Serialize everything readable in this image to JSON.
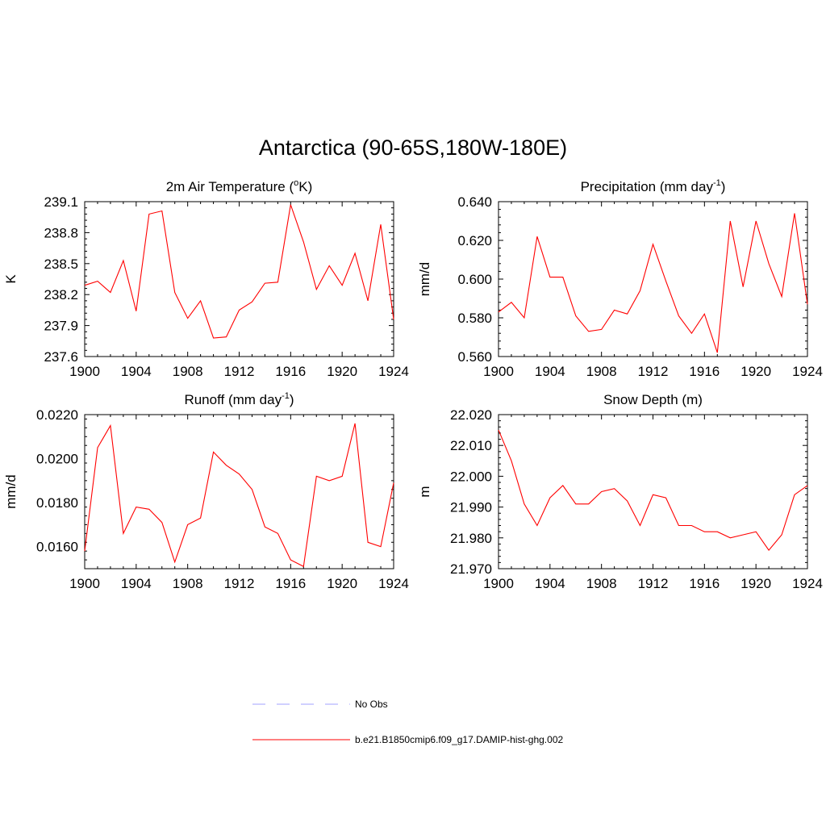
{
  "title": "Antarctica (90-65S,180W-180E)",
  "colors": {
    "series": "#ff0000",
    "obs": "#a0a0ff",
    "axis": "#000000"
  },
  "legend": [
    {
      "label": "No Obs",
      "style": "dashed",
      "color": "#a0a0ff"
    },
    {
      "label": "b.e21.B1850cmip6.f09_g17.DAMIP-hist-ghg.002",
      "style": "solid",
      "color": "#ff0000"
    }
  ],
  "chart_data": [
    {
      "type": "line",
      "title": "2m Air Temperature (",
      "title_sup": "o",
      "title_after": "K)",
      "ylabel": "K",
      "xlim": [
        1900,
        1924
      ],
      "ylim": [
        237.6,
        239.1
      ],
      "xticks": [
        "1900",
        "1904",
        "1908",
        "1912",
        "1916",
        "1920",
        "1924"
      ],
      "yticks": [
        "237.6",
        "237.9",
        "238.2",
        "238.5",
        "238.8",
        "239.1"
      ],
      "series": [
        {
          "x": [
            1900,
            1901,
            1902,
            1903,
            1904,
            1905,
            1906,
            1907,
            1908,
            1909,
            1910,
            1911,
            1912,
            1913,
            1914,
            1915,
            1916,
            1917,
            1918,
            1919,
            1920,
            1921,
            1922,
            1923,
            1924
          ],
          "y": [
            238.29,
            238.33,
            238.22,
            238.53,
            238.04,
            238.98,
            239.01,
            238.22,
            237.97,
            238.14,
            237.78,
            237.79,
            238.05,
            238.13,
            238.31,
            238.32,
            239.07,
            238.71,
            238.25,
            238.48,
            238.29,
            238.6,
            238.14,
            238.88,
            237.96
          ]
        }
      ]
    },
    {
      "type": "line",
      "title": "Precipitation (mm day",
      "title_sup": "-1",
      "title_after": ")",
      "ylabel": "mm/d",
      "xlim": [
        1900,
        1924
      ],
      "ylim": [
        0.56,
        0.64
      ],
      "xticks": [
        "1900",
        "1904",
        "1908",
        "1912",
        "1916",
        "1920",
        "1924"
      ],
      "yticks": [
        "0.560",
        "0.580",
        "0.600",
        "0.620",
        "0.640"
      ],
      "series": [
        {
          "x": [
            1900,
            1901,
            1902,
            1903,
            1904,
            1905,
            1906,
            1907,
            1908,
            1909,
            1910,
            1911,
            1912,
            1913,
            1914,
            1915,
            1916,
            1917,
            1918,
            1919,
            1920,
            1921,
            1922,
            1923,
            1924
          ],
          "y": [
            0.583,
            0.588,
            0.58,
            0.622,
            0.601,
            0.601,
            0.581,
            0.573,
            0.574,
            0.584,
            0.582,
            0.594,
            0.618,
            0.599,
            0.581,
            0.572,
            0.582,
            0.562,
            0.63,
            0.596,
            0.63,
            0.608,
            0.591,
            0.634,
            0.587
          ]
        }
      ]
    },
    {
      "type": "line",
      "title": "Runoff (mm day",
      "title_sup": "-1",
      "title_after": ")",
      "ylabel": "mm/d",
      "xlim": [
        1900,
        1924
      ],
      "ylim": [
        0.015,
        0.022
      ],
      "xticks": [
        "1900",
        "1904",
        "1908",
        "1912",
        "1916",
        "1920",
        "1924"
      ],
      "yticks": [
        "0.0160",
        "0.0180",
        "0.0200",
        "0.0220"
      ],
      "series": [
        {
          "x": [
            1900,
            1901,
            1902,
            1903,
            1904,
            1905,
            1906,
            1907,
            1908,
            1909,
            1910,
            1911,
            1912,
            1913,
            1914,
            1915,
            1916,
            1917,
            1918,
            1919,
            1920,
            1921,
            1922,
            1923,
            1924
          ],
          "y": [
            0.0158,
            0.0205,
            0.0215,
            0.0166,
            0.0178,
            0.0177,
            0.0171,
            0.0153,
            0.017,
            0.0173,
            0.0203,
            0.0197,
            0.0193,
            0.0186,
            0.0169,
            0.0166,
            0.0154,
            0.0151,
            0.0192,
            0.019,
            0.0192,
            0.0216,
            0.0162,
            0.016,
            0.0189
          ]
        }
      ]
    },
    {
      "type": "line",
      "title": "Snow Depth (m)",
      "title_sup": "",
      "title_after": "",
      "ylabel": "m",
      "xlim": [
        1900,
        1924
      ],
      "ylim": [
        21.97,
        22.02
      ],
      "xticks": [
        "1900",
        "1904",
        "1908",
        "1912",
        "1916",
        "1920",
        "1924"
      ],
      "yticks": [
        "21.970",
        "21.980",
        "21.990",
        "22.000",
        "22.010",
        "22.020"
      ],
      "series": [
        {
          "x": [
            1900,
            1901,
            1902,
            1903,
            1904,
            1905,
            1906,
            1907,
            1908,
            1909,
            1910,
            1911,
            1912,
            1913,
            1914,
            1915,
            1916,
            1917,
            1918,
            1919,
            1920,
            1921,
            1922,
            1923,
            1924
          ],
          "y": [
            22.015,
            22.005,
            21.991,
            21.984,
            21.993,
            21.997,
            21.991,
            21.991,
            21.995,
            21.996,
            21.992,
            21.984,
            21.994,
            21.993,
            21.984,
            21.984,
            21.982,
            21.982,
            21.98,
            21.981,
            21.982,
            21.976,
            21.981,
            21.994,
            21.997
          ]
        }
      ]
    }
  ]
}
